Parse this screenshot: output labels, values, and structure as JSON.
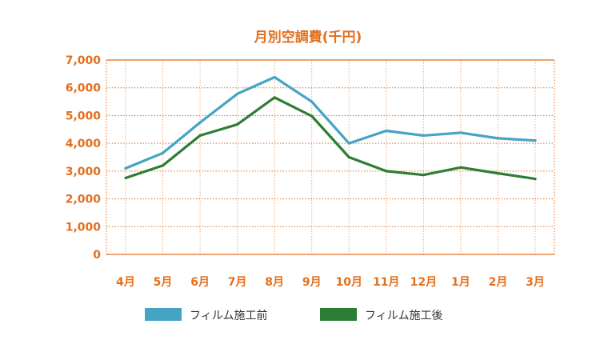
{
  "chart_data": {
    "type": "line",
    "title": "月別空調費(千円)",
    "categories": [
      "4月",
      "5月",
      "6月",
      "7月",
      "8月",
      "9月",
      "10月",
      "11月",
      "12月",
      "1月",
      "2月",
      "3月"
    ],
    "y_ticks": [
      "0",
      "1,000",
      "2,000",
      "3,000",
      "4,000",
      "5,000",
      "6,000",
      "7,000"
    ],
    "ylim": [
      0,
      7000
    ],
    "grid": true,
    "legend_position": "bottom",
    "series": [
      {
        "name": "フィルム施工前",
        "color": "#45a3c4",
        "values": [
          3100,
          3650,
          4750,
          5780,
          6380,
          5500,
          4000,
          4450,
          4280,
          4380,
          4180,
          4100
        ]
      },
      {
        "name": "フィルム施工後",
        "color": "#2e7d34",
        "values": [
          2750,
          3200,
          4280,
          4680,
          5650,
          4980,
          3500,
          3000,
          2860,
          3130,
          2920,
          2720
        ]
      }
    ],
    "axis_color": "#e36f1e",
    "grid_color": "#e36f1e"
  }
}
